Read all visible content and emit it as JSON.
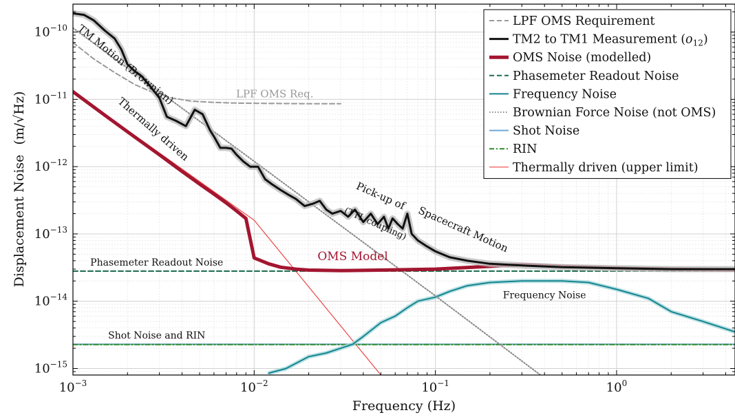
{
  "chart_data": {
    "type": "line",
    "xscale": "log",
    "yscale": "log",
    "xlim": [
      0.001,
      4.5
    ],
    "ylim": [
      8e-16,
      2.6e-10
    ],
    "xlabel": "Frequency (Hz)",
    "ylabel": "Displacement Noise",
    "ylabel_unit": "(m/√Hz)",
    "xticks": [
      {
        "value": 0.001,
        "base": "10",
        "exp": "−3"
      },
      {
        "value": 0.01,
        "base": "10",
        "exp": "−2"
      },
      {
        "value": 0.1,
        "base": "10",
        "exp": "−1"
      },
      {
        "value": 1,
        "base": "10",
        "exp": "0"
      }
    ],
    "yticks": [
      {
        "value": 1e-15,
        "base": "10",
        "exp": "−15"
      },
      {
        "value": 1e-14,
        "base": "10",
        "exp": "−14"
      },
      {
        "value": 1e-13,
        "base": "10",
        "exp": "−13"
      },
      {
        "value": 1e-12,
        "base": "10",
        "exp": "−12"
      },
      {
        "value": 1e-11,
        "base": "10",
        "exp": "−11"
      },
      {
        "value": 1e-10,
        "base": "10",
        "exp": "−10"
      }
    ],
    "grid": true,
    "legend_position": "top-right",
    "legend": [
      {
        "label": "LPF OMS Requirement",
        "color": "#999999",
        "style": "dashed",
        "width": 2
      },
      {
        "label": "TM2 to TM1 Measurement (",
        "sub_label": "o",
        "sub_index": "12",
        "label_end": ")",
        "color": "#111111",
        "style": "solid",
        "width": 3
      },
      {
        "label": "OMS Noise (modelled)",
        "color": "#a31630",
        "style": "solid",
        "width": 5
      },
      {
        "label": "Phasemeter Readout Noise",
        "color": "#1a6b4e",
        "style": "dashed",
        "width": 2
      },
      {
        "label": "Frequency Noise",
        "color": "#13858f",
        "style": "solid",
        "width": 2
      },
      {
        "label": "Brownian Force Noise (not OMS)",
        "color": "#888888",
        "style": "dotted",
        "width": 2
      },
      {
        "label": "Shot Noise",
        "color": "#6fa8d6",
        "style": "solid",
        "width": 2
      },
      {
        "label": "RIN",
        "color": "#2e8b2e",
        "style": "dashdot",
        "width": 2
      },
      {
        "label": "Thermally driven (upper limit)",
        "color": "#ee4444",
        "style": "solid",
        "width": 1.2
      }
    ],
    "series": [
      {
        "name": "LPF OMS Requirement",
        "x": [
          0.001,
          0.0013,
          0.0017,
          0.0022,
          0.0028,
          0.0035,
          0.0045,
          0.006,
          0.008,
          0.011,
          0.015,
          0.02,
          0.03
        ],
        "y": [
          7e-11,
          4e-11,
          2.5e-11,
          1.65e-11,
          1.25e-11,
          1.05e-11,
          9.4e-12,
          9e-12,
          8.8e-12,
          8.7e-12,
          8.65e-12,
          8.6e-12,
          8.6e-12
        ]
      },
      {
        "name": "TM2 to TM1 Measurement (o12)",
        "x": [
          0.001,
          0.00115,
          0.0013,
          0.0015,
          0.0017,
          0.00185,
          0.002,
          0.0022,
          0.0024,
          0.0027,
          0.003,
          0.0033,
          0.0037,
          0.0042,
          0.0047,
          0.0052,
          0.0057,
          0.006,
          0.0065,
          0.007,
          0.0075,
          0.008,
          0.0087,
          0.0095,
          0.0105,
          0.0115,
          0.0125,
          0.014,
          0.0155,
          0.017,
          0.019,
          0.021,
          0.023,
          0.025,
          0.027,
          0.03,
          0.033,
          0.036,
          0.04,
          0.044,
          0.048,
          0.052,
          0.055,
          0.058,
          0.062,
          0.066,
          0.07,
          0.074,
          0.08,
          0.09,
          0.1,
          0.12,
          0.15,
          0.2,
          0.3,
          0.5,
          1.0,
          2.0,
          4.5
        ],
        "y": [
          1.9e-10,
          1.8e-10,
          1.5e-10,
          1.05e-10,
          8e-11,
          5.5e-11,
          3.3e-11,
          2.6e-11,
          2.2e-11,
          1.5e-11,
          1.05e-11,
          5.5e-12,
          4.8e-12,
          4e-12,
          7e-12,
          6e-12,
          3.5e-12,
          2.8e-12,
          1.9e-12,
          1.9e-12,
          1.85e-12,
          1.5e-12,
          1.2e-12,
          1e-12,
          1e-12,
          6.5e-13,
          5.5e-13,
          4.5e-13,
          3.8e-13,
          3.3e-13,
          2.6e-13,
          2.8e-13,
          3.1e-13,
          2.3e-13,
          2e-13,
          2.2e-13,
          1.8e-13,
          2.3e-13,
          1.5e-13,
          2e-13,
          1.4e-13,
          1.8e-13,
          1.2e-13,
          1.7e-13,
          1.4e-13,
          1.2e-13,
          2e-13,
          1e-13,
          8e-14,
          6.5e-14,
          5.5e-14,
          4.5e-14,
          4e-14,
          3.6e-14,
          3.4e-14,
          3.2e-14,
          3.1e-14,
          3e-14,
          3e-14
        ]
      },
      {
        "name": "OMS Noise (modelled)",
        "x": [
          0.001,
          0.0015,
          0.002,
          0.003,
          0.004,
          0.005,
          0.006,
          0.007,
          0.008,
          0.009,
          0.01,
          0.012,
          0.014,
          0.017,
          0.02,
          0.03,
          0.05,
          0.1,
          0.2,
          0.3,
          0.5,
          1.0,
          2.0,
          4.5
        ],
        "y": [
          1.3e-11,
          5.8e-12,
          3.3e-12,
          1.5e-12,
          8.5e-13,
          5.5e-13,
          3.9e-13,
          2.9e-13,
          2.2e-13,
          1.7e-13,
          4.4e-14,
          3.6e-14,
          3.2e-14,
          3e-14,
          2.9e-14,
          2.85e-14,
          2.9e-14,
          3e-14,
          3.3e-14,
          3.5e-14,
          3.3e-14,
          3.1e-14,
          3e-14,
          2.9e-14
        ]
      },
      {
        "name": "Phasemeter Readout Noise",
        "x": [
          0.001,
          4.5
        ],
        "y": [
          2.8e-14,
          2.8e-14
        ]
      },
      {
        "name": "Frequency Noise",
        "x": [
          0.012,
          0.015,
          0.02,
          0.025,
          0.03,
          0.035,
          0.04,
          0.05,
          0.06,
          0.07,
          0.08,
          0.1,
          0.12,
          0.15,
          0.2,
          0.3,
          0.5,
          0.7,
          1.0,
          1.5,
          2.0,
          3.0,
          4.5
        ],
        "y": [
          8.5e-16,
          1e-15,
          1.5e-15,
          1.7e-15,
          2e-15,
          2.3e-15,
          3e-15,
          4.8e-15,
          6e-15,
          8e-15,
          1e-14,
          1.15e-14,
          1.4e-14,
          1.7e-14,
          1.9e-14,
          2e-14,
          2e-14,
          1.9e-14,
          1.5e-14,
          1.1e-14,
          7e-15,
          5e-15,
          3.5e-15
        ]
      },
      {
        "name": "Brownian Force Noise (not OMS)",
        "x": [
          0.001,
          0.01,
          0.1,
          0.38
        ],
        "y": [
          1.15e-10,
          1.2e-12,
          1.2e-14,
          8e-16
        ]
      },
      {
        "name": "Shot Noise",
        "x": [
          0.001,
          4.5
        ],
        "y": [
          2.3e-15,
          2.3e-15
        ]
      },
      {
        "name": "RIN",
        "x": [
          0.001,
          4.5
        ],
        "y": [
          2.27e-15,
          2.27e-15
        ]
      },
      {
        "name": "Thermally driven (upper limit)",
        "x": [
          0.001,
          0.01,
          0.05
        ],
        "y": [
          1.3e-11,
          1.6e-13,
          8e-16
        ]
      }
    ],
    "annotations": [
      {
        "text": "TM Motion (Brownian)",
        "x": 0.0019,
        "y": 3e-11,
        "rotate": 39,
        "color": "#111111",
        "size": 15
      },
      {
        "text": "LPF OMS Req.",
        "x": 0.013,
        "y": 1.07e-11,
        "rotate": 0,
        "color": "#999999",
        "size": 15
      },
      {
        "text": "Thermally driven",
        "x": 0.0027,
        "y": 3.3e-12,
        "rotate": 41,
        "color": "#111111",
        "size": 15
      },
      {
        "text": "Pick-up of",
        "x": 0.049,
        "y": 3.3e-13,
        "rotate": 24,
        "color": "#111111",
        "size": 15
      },
      {
        "text": "Spacecraft Motion",
        "x": 0.14,
        "y": 1.05e-13,
        "rotate": 24,
        "color": "#111111",
        "size": 15
      },
      {
        "text": "(TTL coupling)",
        "x": 0.046,
        "y": 1.3e-13,
        "rotate": 24,
        "color": "#111111",
        "size": 13
      },
      {
        "text": "OMS Model",
        "x": 0.035,
        "y": 4.1e-14,
        "rotate": 0,
        "color": "#a31630",
        "size": 17
      },
      {
        "text": "Phasemeter Readout Noise",
        "x": 0.0029,
        "y": 3.4e-14,
        "rotate": 0,
        "color": "#111111",
        "size": 14
      },
      {
        "text": "Frequency Noise",
        "x": 0.4,
        "y": 1.1e-14,
        "rotate": 0,
        "color": "#111111",
        "size": 14
      },
      {
        "text": "Shot Noise and RIN",
        "x": 0.0029,
        "y": 2.8e-15,
        "rotate": 0,
        "color": "#111111",
        "size": 14
      }
    ]
  }
}
